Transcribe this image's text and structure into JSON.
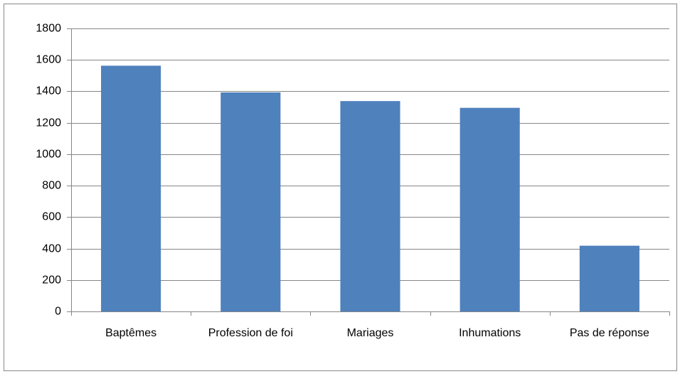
{
  "chart_data": {
    "type": "bar",
    "categories": [
      "Baptêmes",
      "Profession de foi",
      "Mariages",
      "Inhumations",
      "Pas de réponse"
    ],
    "values": [
      1563,
      1393,
      1338,
      1295,
      418
    ],
    "color": "#4f81bd",
    "ylim": [
      0,
      1800
    ],
    "yticks": [
      0,
      200,
      400,
      600,
      800,
      1000,
      1200,
      1400,
      1600,
      1800
    ],
    "grid": true
  }
}
